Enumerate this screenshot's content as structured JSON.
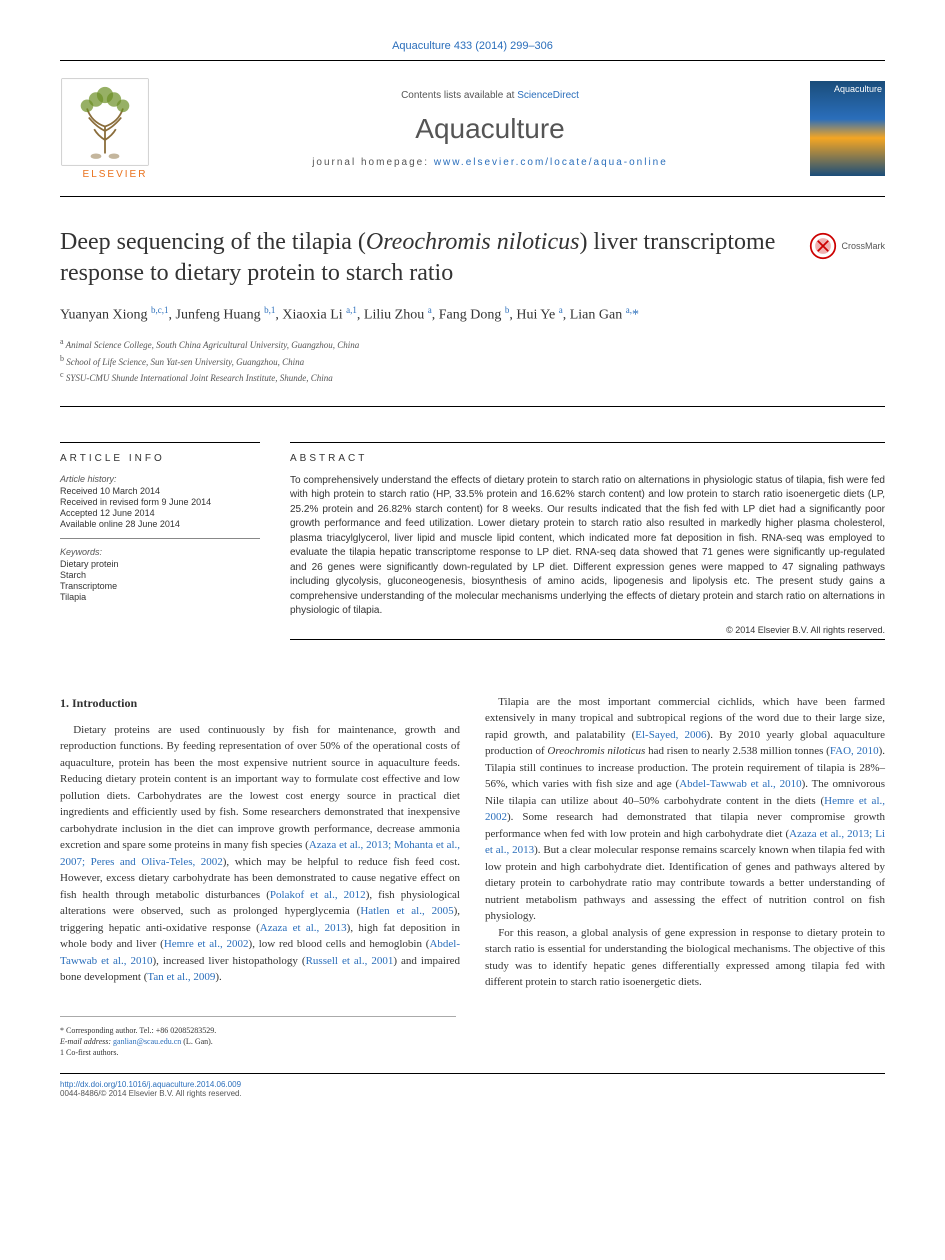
{
  "journal_ref": "Aquaculture 433 (2014) 299–306",
  "header": {
    "contents_prefix": "Contents lists available at ",
    "contents_link": "ScienceDirect",
    "journal_title": "Aquaculture",
    "homepage_prefix": "journal homepage: ",
    "homepage_url": "www.elsevier.com/locate/aqua-online",
    "elsevier_label": "ELSEVIER",
    "cover_label": "Aquaculture"
  },
  "article": {
    "title_part1": "Deep sequencing of the tilapia (",
    "title_italic": "Oreochromis niloticus",
    "title_part2": ") liver transcriptome response to dietary protein to starch ratio",
    "crossmark_label": "CrossMark",
    "authors_html": "Yuanyan Xiong <sup>b,c,1</sup>, Junfeng Huang <sup>b,1</sup>, Xiaoxia Li <sup>a,1</sup>, Liliu Zhou <sup>a</sup>, Fang Dong <sup>b</sup>, Hui Ye <sup>a</sup>, Lian Gan <sup>a,</sup><span class='star'>*</span>",
    "affiliations": [
      "a Animal Science College, South China Agricultural University, Guangzhou, China",
      "b School of Life Science, Sun Yat-sen University, Guangzhou, China",
      "c SYSU-CMU Shunde International Joint Research Institute, Shunde, China"
    ]
  },
  "info": {
    "heading": "ARTICLE INFO",
    "history_label": "Article history:",
    "history": [
      "Received 10 March 2014",
      "Received in revised form 9 June 2014",
      "Accepted 12 June 2014",
      "Available online 28 June 2014"
    ],
    "keywords_label": "Keywords:",
    "keywords": [
      "Dietary protein",
      "Starch",
      "Transcriptome",
      "Tilapia"
    ]
  },
  "abstract": {
    "heading": "ABSTRACT",
    "text": "To comprehensively understand the effects of dietary protein to starch ratio on alternations in physiologic status of tilapia, fish were fed with high protein to starch ratio (HP, 33.5% protein and 16.62% starch content) and low protein to starch ratio isoenergetic diets (LP, 25.2% protein and 26.82% starch content) for 8 weeks. Our results indicated that the fish fed with LP diet had a significantly poor growth performance and feed utilization. Lower dietary protein to starch ratio also resulted in markedly higher plasma cholesterol, plasma triacylglycerol, liver lipid and muscle lipid content, which indicated more fat deposition in fish. RNA-seq was employed to evaluate the tilapia hepatic transcriptome response to LP diet. RNA-seq data showed that 71 genes were significantly up-regulated and 26 genes were significantly down-regulated by LP diet. Different expression genes were mapped to 47 signaling pathways including glycolysis, gluconeogenesis, biosynthesis of amino acids, lipogenesis and lipolysis etc. The present study gains a comprehensive understanding of the molecular mechanisms underlying the effects of dietary protein and starch ratio on alternations in physiologic of tilapia.",
    "copyright": "© 2014 Elsevier B.V. All rights reserved."
  },
  "intro": {
    "heading": "1. Introduction",
    "p1_prefix": "Dietary proteins are used continuously by fish for maintenance, growth and reproduction functions. By feeding representation of over 50% of the operational costs of aquaculture, protein has been the most expensive nutrient source in aquaculture feeds. Reducing dietary protein content is an important way to formulate cost effective and low pollution diets. Carbohydrates are the lowest cost energy source in practical diet ingredients and efficiently used by fish. Some researchers demonstrated that inexpensive carbohydrate inclusion in the diet can improve growth performance, decrease ammonia excretion and spare some proteins in many fish species (",
    "p1_link1": "Azaza et al., 2013; Mohanta et al., 2007; Peres and Oliva-Teles, 2002",
    "p1_mid1": "), which may be helpful to reduce fish feed cost. However, excess dietary carbohydrate has been demonstrated to cause negative effect on fish health through metabolic disturbances (",
    "p1_link2": "Polakof et al., 2012",
    "p1_mid2": "), fish physiological alterations were observed, such as prolonged hyperglycemia (",
    "p1_link3": "Hatlen et al., 2005",
    "p1_mid3": "), triggering hepatic anti-oxidative response (",
    "p1_link4": "Azaza et al., 2013",
    "p1_mid4": "), high fat deposition in whole body and liver (",
    "p1_link5": "Hemre et al., 2002",
    "p1_mid5": "), low red blood cells and hemoglobin (",
    "p1_link6": "Abdel-Tawwab et al., 2010",
    "p1_mid6": "), increased liver histopathology (",
    "p1_link7": "Russell et al., 2001",
    "p1_mid7": ") and impaired bone development (",
    "p1_link8": "Tan et al., 2009",
    "p1_suffix": ").",
    "p2_prefix": "Tilapia are the most important commercial cichlids, which have been farmed extensively in many tropical and subtropical regions of the word due to their large size, rapid growth, and palatability (",
    "p2_link1": "El-Sayed, 2006",
    "p2_mid1": "). By 2010 yearly global aquaculture production of ",
    "p2_italic": "Oreochromis niloticus",
    "p2_mid1b": " had risen to nearly 2.538 million tonnes (",
    "p2_link2": "FAO, 2010",
    "p2_mid2": "). Tilapia still continues to increase production. The protein requirement of tilapia is 28%–56%, which varies with fish size and age (",
    "p2_link3": "Abdel-Tawwab et al., 2010",
    "p2_mid3": "). The omnivorous Nile tilapia can utilize about 40–50% carbohydrate content in the diets (",
    "p2_link4": "Hemre et al., 2002",
    "p2_mid4": "). Some research had demonstrated that tilapia never compromise growth performance when fed with low protein and high carbohydrate diet (",
    "p2_link5": "Azaza et al., 2013; Li et al., 2013",
    "p2_suffix": "). But a clear molecular response remains scarcely known when tilapia fed with low protein and high carbohydrate diet. Identification of genes and pathways altered by dietary protein to carbohydrate ratio may contribute towards a better understanding of nutrient metabolism pathways and assessing the effect of nutrition control on fish physiology.",
    "p3": "For this reason, a global analysis of gene expression in response to dietary protein to starch ratio is essential for understanding the biological mechanisms. The objective of this study was to identify hepatic genes differentially expressed among tilapia fed with different protein to starch ratio isoenergetic diets."
  },
  "footnotes": {
    "correspond": "* Corresponding author. Tel.: +86 02085283529.",
    "email_label": "E-mail address: ",
    "email": "ganlian@scau.edu.cn",
    "email_suffix": " (L. Gan).",
    "cofirst": "1 Co-first authors."
  },
  "footer": {
    "doi": "http://dx.doi.org/10.1016/j.aquaculture.2014.06.009",
    "issn": "0044-8486/© 2014 Elsevier B.V. All rights reserved."
  },
  "colors": {
    "link": "#2a6ebb",
    "elsevier": "#e9711c",
    "text": "#333333"
  }
}
